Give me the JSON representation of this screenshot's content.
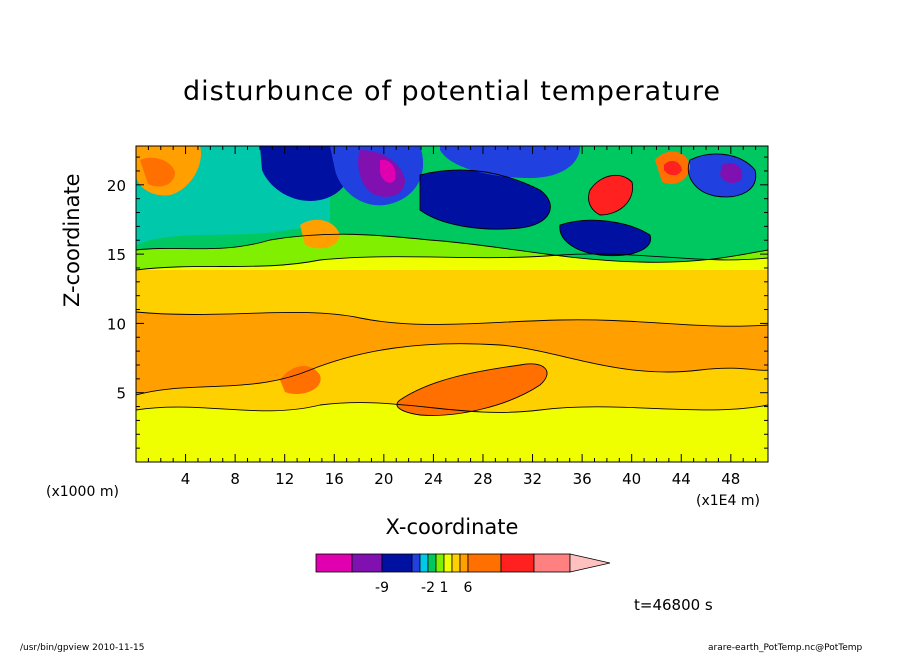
{
  "chart_data": {
    "type": "heatmap",
    "title": "disturbunce of potential temperature",
    "xlabel": "X-coordinate",
    "ylabel": "Z-coordinate",
    "x_unit_left": "(x1000 m)",
    "x_unit_right": "(x1E4 m)",
    "x_ticks": [
      4,
      8,
      12,
      16,
      20,
      24,
      28,
      32,
      36,
      40,
      44,
      48
    ],
    "y_ticks": [
      5,
      10,
      15,
      20
    ],
    "xlim": [
      0,
      51
    ],
    "ylim": [
      0,
      22.8
    ],
    "grid": false,
    "colorbar": {
      "colors": [
        "#e000b0",
        "#8010b0",
        "#0010a0",
        "#2040e0",
        "#00c8e8",
        "#00c860",
        "#80f000",
        "#f0ff00",
        "#ffd000",
        "#ffa000",
        "#ff7000",
        "#ff2020",
        "#ff8080",
        "#ffc0c0"
      ],
      "tick_labels": [
        "-9",
        "-2",
        "1",
        "6"
      ],
      "extend": "max"
    },
    "annotation": "t=46800 s"
  },
  "footer": {
    "left": "/usr/bin/gpview   2010-11-15",
    "right": "arare-earth_PotTemp.nc@PotTemp"
  }
}
